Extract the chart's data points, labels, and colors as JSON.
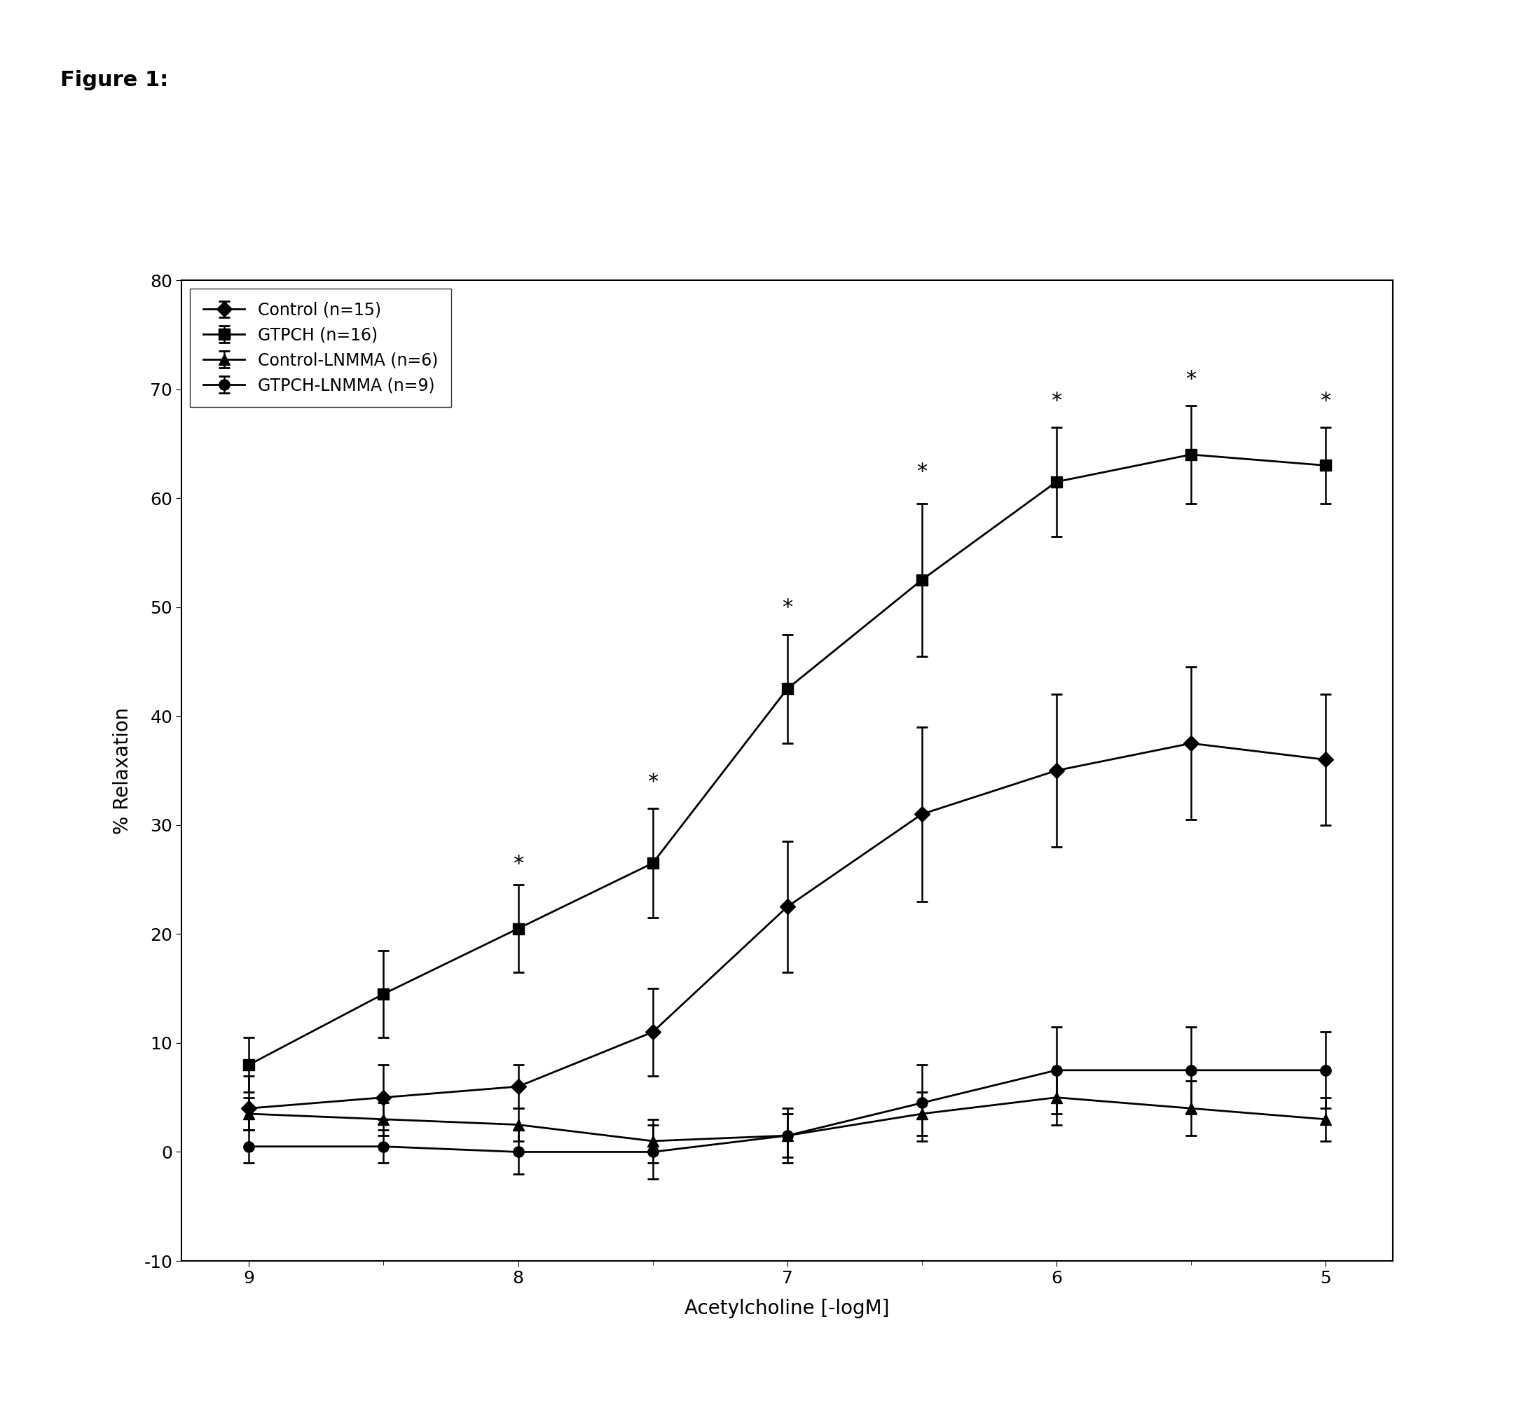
{
  "title": "Figure 1:",
  "xlabel": "Acetylcholine [-logM]",
  "ylabel": "% Relaxation",
  "xlim": [
    9.25,
    4.75
  ],
  "ylim": [
    -10,
    80
  ],
  "yticks": [
    -10,
    0,
    10,
    20,
    30,
    40,
    50,
    60,
    70,
    80
  ],
  "xticks_major": [
    9,
    8,
    7,
    6,
    5
  ],
  "xticks_minor": [
    8.5,
    7.5,
    6.5,
    5.5
  ],
  "xticklabels": [
    "9",
    "8",
    "7",
    "6",
    "5"
  ],
  "x": [
    9,
    8.5,
    8,
    7.5,
    7,
    6.5,
    6,
    5.5,
    5
  ],
  "series": {
    "Control": {
      "label": "Control (n=15)",
      "marker": "D",
      "y": [
        4.0,
        5.0,
        6.0,
        11.0,
        22.5,
        31.0,
        35.0,
        37.5,
        36.0
      ],
      "yerr_upper": [
        3.0,
        3.0,
        2.0,
        4.0,
        6.0,
        8.0,
        7.0,
        7.0,
        6.0
      ],
      "yerr_lower": [
        2.0,
        2.0,
        2.0,
        4.0,
        6.0,
        8.0,
        7.0,
        7.0,
        6.0
      ]
    },
    "GTPCH": {
      "label": "GTPCH (n=16)",
      "marker": "s",
      "y": [
        8.0,
        14.5,
        20.5,
        26.5,
        42.5,
        52.5,
        61.5,
        64.0,
        63.0
      ],
      "yerr_upper": [
        2.5,
        4.0,
        4.0,
        5.0,
        5.0,
        7.0,
        5.0,
        4.5,
        3.5
      ],
      "yerr_lower": [
        2.5,
        4.0,
        4.0,
        5.0,
        5.0,
        7.0,
        5.0,
        4.5,
        3.5
      ]
    },
    "Control-LNMMA": {
      "label": "Control-LNMMA (n=6)",
      "marker": "^",
      "y": [
        3.5,
        3.0,
        2.5,
        1.0,
        1.5,
        3.5,
        5.0,
        4.0,
        3.0
      ],
      "yerr_upper": [
        1.5,
        1.5,
        1.5,
        2.0,
        2.0,
        2.0,
        2.5,
        2.5,
        2.0
      ],
      "yerr_lower": [
        1.5,
        1.5,
        1.5,
        2.0,
        2.0,
        2.0,
        2.5,
        2.5,
        2.0
      ]
    },
    "GTPCH-LNMMA": {
      "label": "GTPCH-LNMMA (n=9)",
      "marker": "o",
      "y": [
        0.5,
        0.5,
        0.0,
        0.0,
        1.5,
        4.5,
        7.5,
        7.5,
        7.5
      ],
      "yerr_upper": [
        1.5,
        1.5,
        2.0,
        2.5,
        2.5,
        3.5,
        4.0,
        4.0,
        3.5
      ],
      "yerr_lower": [
        1.5,
        1.5,
        2.0,
        2.5,
        2.5,
        3.5,
        4.0,
        4.0,
        3.5
      ]
    }
  },
  "significance_stars": {
    "GTPCH": [
      8,
      7.5,
      7,
      6.5,
      6,
      5.5,
      5
    ]
  },
  "star_y_offsets": {
    "8": 25.5,
    "7.5": 33.0,
    "7": 49.0,
    "6.5": 61.5,
    "6": 68.0,
    "5.5": 70.0,
    "5": 68.0
  },
  "color": "#000000",
  "background_color": "#ffffff",
  "figure_title_fontsize": 22,
  "axis_label_fontsize": 20,
  "tick_fontsize": 18,
  "legend_fontsize": 17,
  "markersize": 11,
  "linewidth": 2.0,
  "capsize": 6,
  "elinewidth": 1.8
}
